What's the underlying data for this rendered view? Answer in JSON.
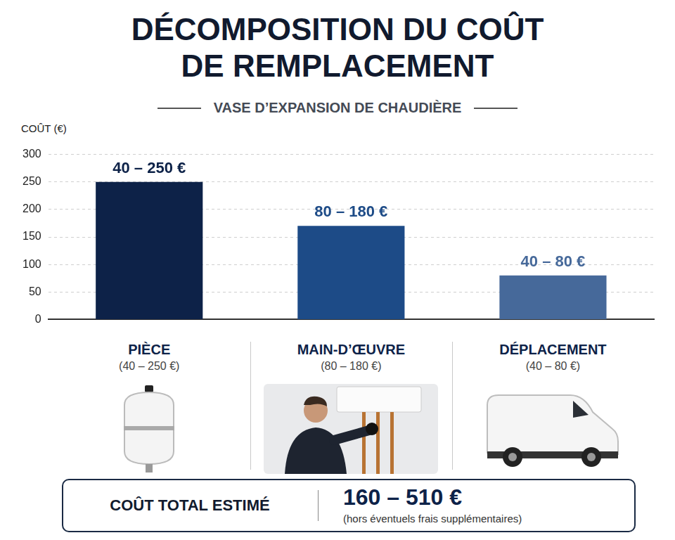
{
  "chart_data": {
    "type": "bar",
    "title": [
      "DÉCOMPOSITION DU COÛT",
      "DE REMPLACEMENT"
    ],
    "subtitle": "VASE D’EXPANSION DE CHAUDIÈRE",
    "y_label": "COÛT (€)",
    "categories": [
      "PIÈCE",
      "MAIN-D’ŒUVRE",
      "DÉPLACEMENT"
    ],
    "values": [
      250,
      170,
      80
    ],
    "colors": [
      "#0d2248",
      "#1d4b87",
      "#46699a"
    ],
    "bar_annotations": [
      "40 – 250 €",
      "80 – 180 €",
      "40 – 80 €"
    ],
    "category_notes": [
      "(40 – 250 €)",
      "(80 – 180 €)",
      "(40 – 80 €)"
    ],
    "ylim": [
      0,
      300
    ],
    "yticks": [
      0,
      50,
      100,
      150,
      200,
      250,
      300
    ],
    "grid": true,
    "total": {
      "label": "COÛT TOTAL ESTIMÉ",
      "value": "160 – 510 €",
      "note": "(hors éventuels frais supplémentaires)"
    }
  }
}
